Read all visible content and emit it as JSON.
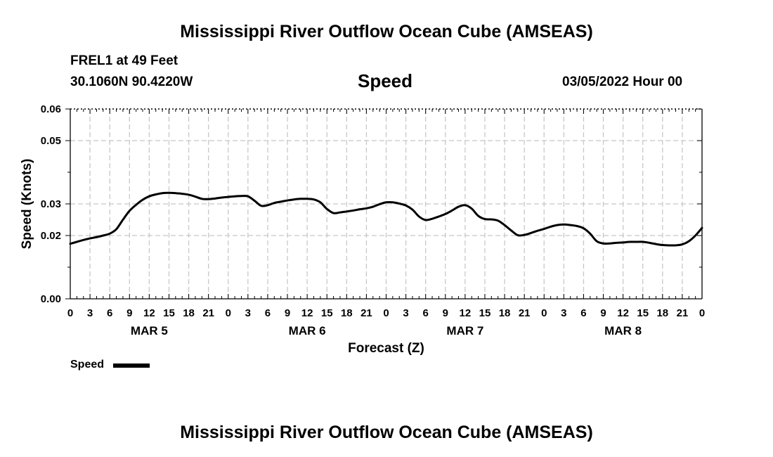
{
  "header": {
    "title": "Mississippi River Outflow Ocean Cube (AMSEAS)",
    "station": "FREL1 at 49 Feet",
    "coords": "30.1060N  90.4220W",
    "variable": "Speed",
    "datetime": "03/05/2022 Hour 00"
  },
  "footer": {
    "title": "Mississippi River Outflow Ocean Cube (AMSEAS)"
  },
  "legend": {
    "label": "Speed"
  },
  "colors": {
    "line": "#000000",
    "grid": "#c8c8c8",
    "axis": "#000000"
  },
  "chart_data": {
    "type": "line",
    "title": "Speed",
    "xlabel": "Forecast (Z)",
    "ylabel": "Speed (Knots)",
    "xlim": [
      0,
      96
    ],
    "ylim": [
      0.0,
      0.06
    ],
    "x_tick_hours": [
      0,
      3,
      6,
      9,
      12,
      15,
      18,
      21,
      24,
      27,
      30,
      33,
      36,
      39,
      42,
      45,
      48,
      51,
      54,
      57,
      60,
      63,
      66,
      69,
      72,
      75,
      78,
      81,
      84,
      87,
      90,
      93,
      96
    ],
    "x_tick_labels": [
      "0",
      "3",
      "6",
      "9",
      "12",
      "15",
      "18",
      "21",
      "0",
      "3",
      "6",
      "9",
      "12",
      "15",
      "18",
      "21",
      "0",
      "3",
      "6",
      "9",
      "12",
      "15",
      "18",
      "21",
      "0",
      "3",
      "6",
      "9",
      "12",
      "15",
      "18",
      "21",
      "0"
    ],
    "y_ticks": [
      0.0,
      0.02,
      0.03,
      0.05,
      0.06
    ],
    "y_tick_labels": [
      "0.00",
      "0.02",
      "0.03",
      "0.05",
      "0.06"
    ],
    "day_labels": [
      {
        "hour": 12,
        "label": "MAR 5"
      },
      {
        "hour": 36,
        "label": "MAR 6"
      },
      {
        "hour": 60,
        "label": "MAR 7"
      },
      {
        "hour": 84,
        "label": "MAR 8"
      }
    ],
    "grid": true,
    "series": [
      {
        "name": "Speed",
        "x": [
          0,
          1,
          2,
          3,
          4,
          5,
          6,
          7,
          8,
          9,
          10,
          11,
          12,
          13,
          14,
          15,
          16,
          17,
          18,
          19,
          20,
          21,
          22,
          23,
          24,
          25,
          26,
          27,
          28,
          29,
          30,
          31,
          32,
          33,
          34,
          35,
          36,
          37,
          38,
          39,
          40,
          41,
          42,
          43,
          44,
          45,
          46,
          47,
          48,
          49,
          50,
          51,
          52,
          53,
          54,
          55,
          56,
          57,
          58,
          59,
          60,
          61,
          62,
          63,
          64,
          65,
          66,
          67,
          68,
          69,
          70,
          71,
          72,
          73,
          74,
          75,
          76,
          77,
          78,
          79,
          80,
          81,
          82,
          83,
          84,
          85,
          86,
          87,
          88,
          89,
          90,
          91,
          92,
          93,
          94,
          95,
          96
        ],
        "values": [
          0.0174,
          0.018,
          0.0186,
          0.0191,
          0.0195,
          0.02,
          0.0206,
          0.022,
          0.025,
          0.0278,
          0.0297,
          0.0313,
          0.0324,
          0.033,
          0.0334,
          0.0335,
          0.0334,
          0.0332,
          0.0329,
          0.0323,
          0.0316,
          0.0315,
          0.0317,
          0.032,
          0.0322,
          0.0324,
          0.0325,
          0.0324,
          0.031,
          0.0294,
          0.0296,
          0.0303,
          0.0307,
          0.0311,
          0.0314,
          0.0316,
          0.0316,
          0.0314,
          0.0305,
          0.0284,
          0.0271,
          0.0273,
          0.0276,
          0.0279,
          0.0283,
          0.0286,
          0.0291,
          0.0299,
          0.0305,
          0.0305,
          0.0301,
          0.0295,
          0.0282,
          0.026,
          0.0249,
          0.0253,
          0.026,
          0.0268,
          0.0279,
          0.0291,
          0.0296,
          0.0285,
          0.0262,
          0.0252,
          0.0251,
          0.0247,
          0.0233,
          0.0216,
          0.0201,
          0.0202,
          0.0208,
          0.0215,
          0.0221,
          0.0228,
          0.0233,
          0.0235,
          0.0233,
          0.023,
          0.0223,
          0.0206,
          0.0182,
          0.0175,
          0.0175,
          0.0177,
          0.0178,
          0.018,
          0.018,
          0.018,
          0.0177,
          0.0173,
          0.017,
          0.0169,
          0.0169,
          0.0172,
          0.0182,
          0.02,
          0.0224
        ]
      }
    ]
  }
}
